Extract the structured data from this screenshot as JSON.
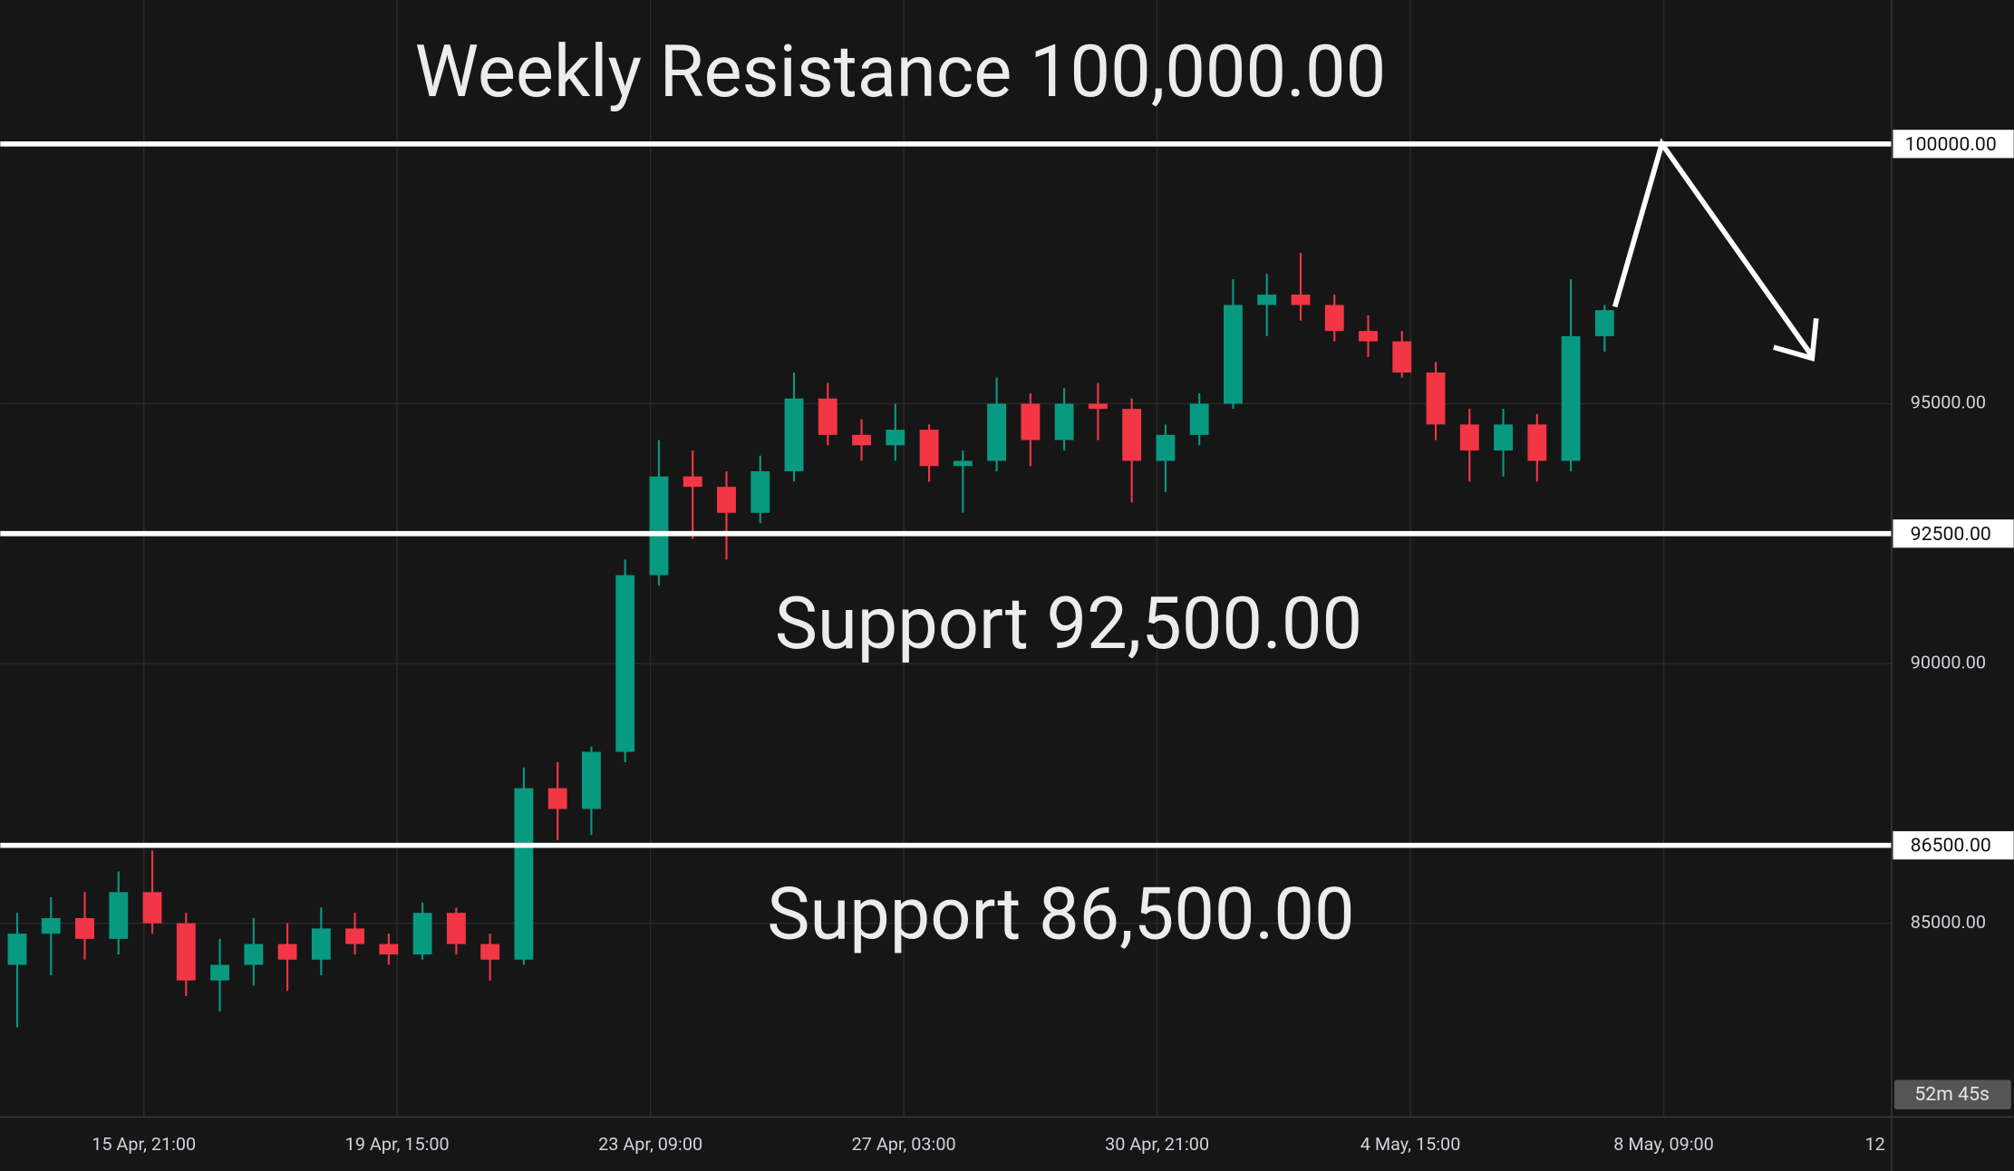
{
  "chart_data": {
    "type": "candlestick",
    "x": [
      -30,
      -18,
      -6,
      6,
      18,
      30,
      42,
      54,
      66,
      78,
      90,
      102,
      114,
      126,
      138,
      150,
      162,
      174,
      186,
      198,
      210,
      222,
      234,
      246,
      258,
      270,
      282,
      294,
      306,
      318,
      330,
      342,
      354,
      366,
      378,
      390,
      402,
      414,
      426,
      438,
      450,
      462,
      474,
      486,
      498,
      510,
      522,
      534
    ],
    "open": [
      84200,
      84800,
      85100,
      84700,
      85600,
      85000,
      83900,
      84200,
      84600,
      84300,
      84900,
      84600,
      84400,
      85200,
      84600,
      84300,
      87600,
      87200,
      88300,
      91700,
      93600,
      93400,
      92900,
      93700,
      95100,
      94400,
      94200,
      94500,
      93800,
      93900,
      95000,
      94300,
      95000,
      94900,
      93900,
      94400,
      95000,
      96900,
      97100,
      96900,
      96400,
      96200,
      95600,
      94600,
      94100,
      94600,
      93900,
      96300
    ],
    "high": [
      85200,
      85500,
      85600,
      86000,
      86400,
      85200,
      84700,
      85100,
      85000,
      85300,
      85200,
      84800,
      85400,
      85300,
      84800,
      88000,
      88100,
      88400,
      92000,
      94300,
      94100,
      93700,
      94000,
      95600,
      95400,
      94700,
      95000,
      94600,
      94100,
      95500,
      95200,
      95300,
      95400,
      95100,
      94600,
      95200,
      97400,
      97500,
      97900,
      97100,
      96700,
      96400,
      95800,
      94900,
      94900,
      94800,
      97400,
      96900
    ],
    "low": [
      83000,
      84000,
      84300,
      84400,
      84800,
      83600,
      83300,
      83800,
      83700,
      84000,
      84400,
      84200,
      84300,
      84400,
      83900,
      84200,
      86600,
      86700,
      88100,
      91500,
      92400,
      92000,
      92700,
      93500,
      94200,
      93900,
      93900,
      93500,
      92900,
      93700,
      93800,
      94100,
      94300,
      93100,
      93300,
      94200,
      94900,
      96300,
      96600,
      96200,
      95900,
      95500,
      94300,
      93500,
      93600,
      93500,
      93700,
      96000
    ],
    "close": [
      84800,
      85100,
      84700,
      85600,
      85000,
      83900,
      84200,
      84600,
      84300,
      84900,
      84600,
      84400,
      85200,
      84600,
      84300,
      87600,
      87200,
      88300,
      91700,
      93600,
      93400,
      92900,
      93700,
      95100,
      94400,
      94200,
      94500,
      93800,
      93900,
      95000,
      94300,
      95000,
      94900,
      93900,
      94400,
      95000,
      96900,
      97100,
      96900,
      96400,
      96200,
      95600,
      94600,
      94100,
      94600,
      93900,
      96300,
      96800
    ],
    "up_color": "#089981",
    "down_color": "#f23645",
    "xlim": [
      -30,
      642
    ],
    "xticks": [
      {
        "value": 21,
        "label": "15 Apr, 21:00"
      },
      {
        "value": 111,
        "label": "19 Apr, 15:00"
      },
      {
        "value": 201,
        "label": "23 Apr, 09:00"
      },
      {
        "value": 291,
        "label": "27 Apr, 03:00"
      },
      {
        "value": 381,
        "label": "30 Apr, 21:00"
      },
      {
        "value": 471,
        "label": "4 May, 15:00"
      },
      {
        "value": 561,
        "label": "8 May, 09:00"
      },
      {
        "value": 648,
        "label": "12"
      }
    ],
    "ylim": [
      81270,
      102770
    ],
    "yticks": [
      {
        "value": 95000,
        "label": "95000.00"
      },
      {
        "value": 90000,
        "label": "90000.00"
      },
      {
        "value": 85000,
        "label": "85000.00"
      }
    ],
    "grid": true,
    "levels": [
      {
        "value": 100000,
        "label": "100000.00",
        "text": "Weekly Resistance 100,000.00"
      },
      {
        "value": 92500,
        "label": "92500.00",
        "text": "Support 92,500.00"
      },
      {
        "value": 86500,
        "label": "86500.00",
        "text": "Support 86,500.00"
      }
    ],
    "countdown": "52m 45s"
  }
}
